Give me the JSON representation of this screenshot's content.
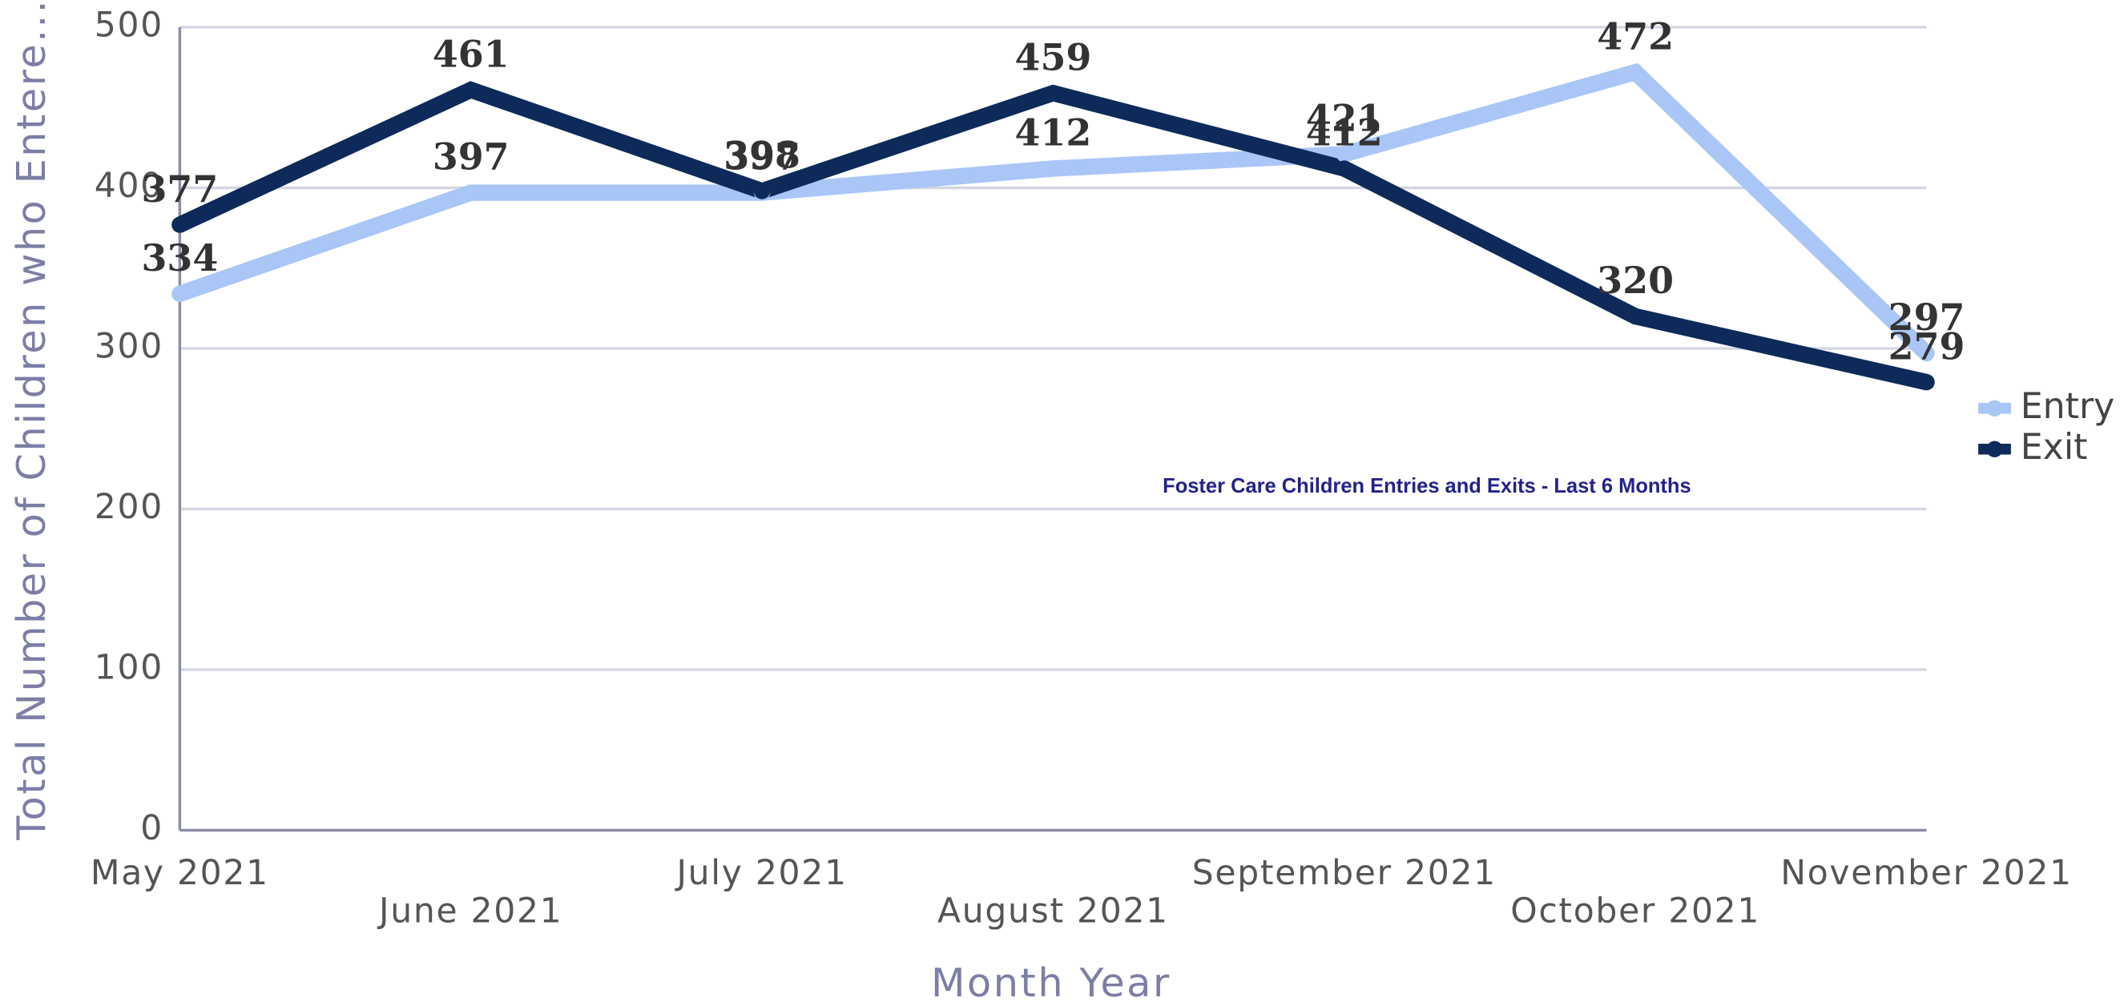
{
  "chart_data": {
    "type": "line",
    "title": "Foster Care Children Entries and Exits - Last 6 Months",
    "x_label": "Month Year",
    "y_label": "Total Number of Children who Entere...",
    "categories": [
      "May 2021",
      "June 2021",
      "July 2021",
      "August 2021",
      "September 2021",
      "October 2021",
      "November 2021"
    ],
    "series": [
      {
        "name": "Entry",
        "color": "#a9c6f7",
        "values": [
          334,
          397,
          397,
          412,
          421,
          472,
          297
        ]
      },
      {
        "name": "Exit",
        "color": "#0d2a5a",
        "values": [
          377,
          461,
          398,
          459,
          412,
          320,
          279
        ]
      }
    ],
    "ylim": [
      0,
      500
    ],
    "yticks": [
      0,
      100,
      200,
      300,
      400,
      500
    ],
    "grid": true,
    "legend": "right"
  }
}
